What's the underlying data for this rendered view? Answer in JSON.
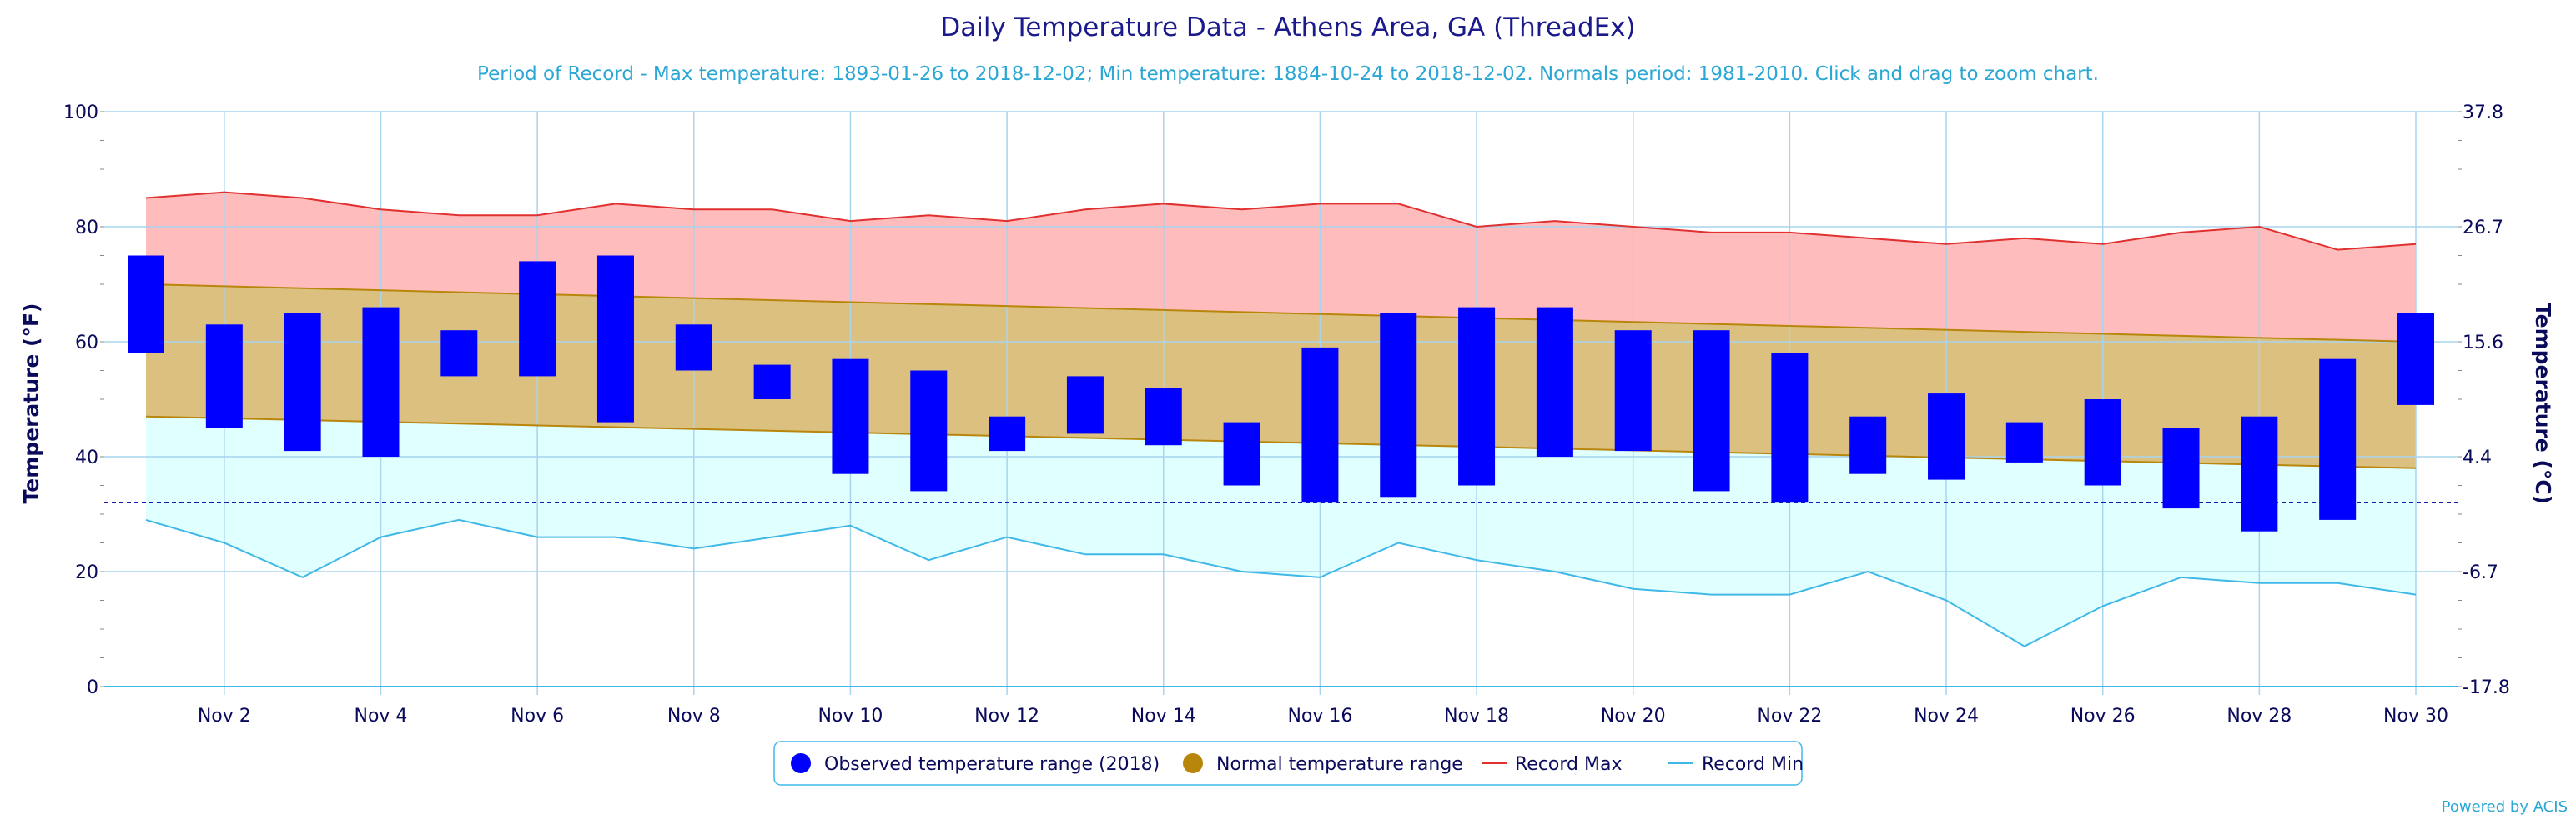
{
  "chart_data": {
    "type": "bar",
    "title": "Daily Temperature Data - Athens Area, GA (ThreadEx)",
    "subtitle": "Period of Record - Max temperature: 1893-01-26 to 2018-12-02; Min temperature: 1884-10-24 to 2018-12-02. Normals period: 1981-2010. Click and drag to zoom chart.",
    "ylabel": "Temperature (°F)",
    "ylabel_right": "Temperature (°C)",
    "ylim": [
      0,
      100
    ],
    "y_ticks": [
      "0",
      "20",
      "40",
      "60",
      "80",
      "100"
    ],
    "y_ticks_right": [
      "-17.8",
      "-6.7",
      "4.4",
      "15.6",
      "26.7",
      "37.8"
    ],
    "x_ticks": [
      "Nov 2",
      "Nov 4",
      "Nov 6",
      "Nov 8",
      "Nov 10",
      "Nov 12",
      "Nov 14",
      "Nov 16",
      "Nov 18",
      "Nov 20",
      "Nov 22",
      "Nov 24",
      "Nov 26",
      "Nov 28",
      "Nov 30"
    ],
    "x_days": [
      1,
      30
    ],
    "freezing_line": 32,
    "grid": true,
    "legend_position": "bottom",
    "legend": [
      {
        "label": "Observed temperature range (2018)",
        "symbol": "dot",
        "color": "#0000ff"
      },
      {
        "label": "Normal temperature range",
        "symbol": "dot",
        "color": "#b8860b"
      },
      {
        "label": "Record Max",
        "symbol": "line",
        "color": "#e03030"
      },
      {
        "label": "Record Min",
        "symbol": "line",
        "color": "#3fb8e8"
      }
    ],
    "series": [
      {
        "name": "Observed temperature range (2018)",
        "days": [
          1,
          2,
          3,
          4,
          5,
          6,
          7,
          8,
          9,
          10,
          11,
          12,
          13,
          14,
          15,
          16,
          17,
          18,
          19,
          20,
          21,
          22,
          23,
          24,
          25,
          26,
          27,
          28,
          29,
          30
        ],
        "low": [
          58,
          45,
          41,
          40,
          54,
          54,
          46,
          55,
          50,
          37,
          34,
          41,
          44,
          42,
          35,
          32,
          33,
          35,
          40,
          41,
          34,
          32,
          37,
          36,
          39,
          35,
          31,
          27,
          29,
          49
        ],
        "high": [
          75,
          63,
          65,
          66,
          62,
          74,
          75,
          63,
          56,
          57,
          55,
          47,
          54,
          52,
          46,
          59,
          65,
          66,
          66,
          62,
          62,
          58,
          47,
          51,
          46,
          50,
          45,
          47,
          57,
          65
        ]
      },
      {
        "name": "Normal temperature range",
        "days": [
          1,
          30
        ],
        "low": [
          47,
          38
        ],
        "high": [
          70,
          60
        ]
      },
      {
        "name": "Record Max",
        "days": [
          1,
          2,
          3,
          4,
          5,
          6,
          7,
          8,
          9,
          10,
          11,
          12,
          13,
          14,
          15,
          16,
          17,
          18,
          19,
          20,
          21,
          22,
          23,
          24,
          25,
          26,
          27,
          28,
          29,
          30
        ],
        "values": [
          85,
          86,
          85,
          83,
          82,
          82,
          84,
          83,
          83,
          81,
          82,
          81,
          83,
          84,
          83,
          84,
          84,
          80,
          81,
          80,
          79,
          79,
          78,
          77,
          78,
          77,
          79,
          80,
          76,
          77
        ]
      },
      {
        "name": "Record Min",
        "days": [
          1,
          2,
          3,
          4,
          5,
          6,
          7,
          8,
          9,
          10,
          11,
          12,
          13,
          14,
          15,
          16,
          17,
          18,
          19,
          20,
          21,
          22,
          23,
          24,
          25,
          26,
          27,
          28,
          29,
          30
        ],
        "values": [
          29,
          25,
          19,
          26,
          29,
          26,
          26,
          24,
          26,
          28,
          22,
          26,
          23,
          23,
          20,
          19,
          25,
          22,
          20,
          17,
          16,
          16,
          20,
          15,
          7,
          14,
          19,
          18,
          18,
          16
        ]
      }
    ],
    "colors": {
      "record_band": "#ffbcbc",
      "normal_band": "#dcc080",
      "low_band": "#e0ffff",
      "bar": "#0000ff",
      "record_max_line": "#e03030",
      "record_min_line": "#3fb8e8",
      "normal_line": "#b8860b",
      "grid": "#a8d4ee",
      "freezing": "#1a1aaa"
    },
    "credit": "Powered by ACIS"
  }
}
